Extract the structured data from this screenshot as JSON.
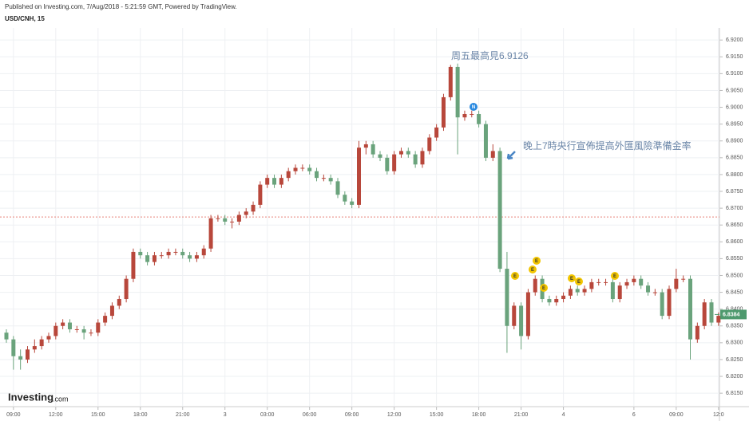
{
  "header": {
    "published": "Published on Investing.com, 7/Aug/2018 - 5:21:59 GMT, Powered by TradingView.",
    "symbol": "USD/CNH, 15",
    "logo": "Investing",
    "logo_suffix": ".com"
  },
  "chart_data": {
    "type": "candlestick",
    "categories": [
      null,
      "09:00",
      null,
      null,
      null,
      null,
      null,
      "12:00",
      null,
      null,
      null,
      null,
      null,
      "15:00",
      null,
      null,
      null,
      null,
      null,
      "18:00",
      null,
      null,
      null,
      null,
      null,
      "21:00",
      null,
      null,
      null,
      null,
      null,
      "3",
      null,
      null,
      null,
      null,
      null,
      "03:00",
      null,
      null,
      null,
      null,
      null,
      "06:00",
      null,
      null,
      null,
      null,
      null,
      "09:00",
      null,
      null,
      null,
      null,
      null,
      "12:00",
      null,
      null,
      null,
      null,
      null,
      "15:00",
      null,
      null,
      null,
      null,
      null,
      "18:00",
      null,
      null,
      null,
      null,
      null,
      "21:00",
      null,
      null,
      null,
      null,
      null,
      "4",
      null,
      null,
      null,
      null,
      null,
      null,
      null,
      null,
      null,
      "6",
      null,
      null,
      null,
      null,
      null,
      "09:00",
      null,
      null,
      null,
      null,
      null,
      "12:0"
    ],
    "open": [
      6.833,
      6.831,
      6.826,
      6.825,
      6.828,
      6.829,
      6.831,
      6.832,
      6.835,
      6.836,
      6.834,
      6.834,
      6.833,
      6.833,
      6.836,
      6.838,
      6.841,
      6.843,
      6.849,
      6.857,
      6.856,
      6.854,
      6.856,
      6.856,
      6.857,
      6.857,
      6.856,
      6.855,
      6.856,
      6.858,
      6.867,
      6.867,
      6.866,
      6.866,
      6.868,
      6.869,
      6.871,
      6.877,
      6.879,
      6.877,
      6.879,
      6.881,
      6.882,
      6.882,
      6.881,
      6.879,
      6.879,
      6.878,
      6.874,
      6.872,
      6.871,
      6.888,
      6.889,
      6.886,
      6.885,
      6.881,
      6.886,
      6.887,
      6.886,
      6.883,
      6.887,
      6.891,
      6.894,
      6.903,
      6.912,
      6.897,
      6.898,
      6.898,
      6.895,
      6.885,
      6.887,
      6.852,
      6.835,
      6.841,
      6.832,
      6.845,
      6.849,
      6.843,
      6.842,
      6.843,
      6.844,
      6.846,
      6.845,
      6.846,
      6.848,
      6.848,
      6.848,
      6.843,
      6.847,
      6.848,
      6.849,
      6.847,
      6.845,
      6.845,
      6.838,
      6.846,
      6.849,
      6.849,
      6.831,
      6.835,
      6.842,
      6.836
    ],
    "high": [
      6.834,
      6.832,
      6.828,
      6.829,
      6.831,
      6.832,
      6.833,
      6.836,
      6.837,
      6.837,
      6.835,
      6.835,
      6.834,
      6.837,
      6.839,
      6.842,
      6.844,
      6.85,
      6.858,
      6.858,
      6.857,
      6.857,
      6.857,
      6.858,
      6.858,
      6.858,
      6.857,
      6.857,
      6.859,
      6.868,
      6.868,
      6.868,
      6.867,
      6.869,
      6.87,
      6.872,
      6.878,
      6.88,
      6.88,
      6.88,
      6.882,
      6.883,
      6.883,
      6.883,
      6.882,
      6.88,
      6.88,
      6.879,
      6.875,
      6.873,
      6.89,
      6.89,
      6.89,
      6.887,
      6.886,
      6.887,
      6.888,
      6.888,
      6.887,
      6.888,
      6.892,
      6.895,
      6.904,
      6.9126,
      6.913,
      6.899,
      6.899,
      6.899,
      6.896,
      6.889,
      6.888,
      6.857,
      6.842,
      6.842,
      6.846,
      6.85,
      6.85,
      6.844,
      6.844,
      6.845,
      6.847,
      6.847,
      6.847,
      6.849,
      6.849,
      6.849,
      6.849,
      6.848,
      6.849,
      6.85,
      6.85,
      6.848,
      6.846,
      6.846,
      6.847,
      6.852,
      6.85,
      6.85,
      6.836,
      6.843,
      6.843,
      6.839
    ],
    "low": [
      6.83,
      6.822,
      6.822,
      6.824,
      6.827,
      6.828,
      6.83,
      6.831,
      6.834,
      6.833,
      6.833,
      6.831,
      6.832,
      6.832,
      6.835,
      6.837,
      6.84,
      6.842,
      6.848,
      6.855,
      6.853,
      6.853,
      6.855,
      6.855,
      6.856,
      6.855,
      6.854,
      6.854,
      6.855,
      6.857,
      6.866,
      6.865,
      6.864,
      6.865,
      6.867,
      6.868,
      6.87,
      6.876,
      6.876,
      6.876,
      6.878,
      6.88,
      6.881,
      6.88,
      6.878,
      6.878,
      6.877,
      6.873,
      6.871,
      6.87,
      6.87,
      6.886,
      6.885,
      6.884,
      6.88,
      6.88,
      6.885,
      6.885,
      6.882,
      6.882,
      6.886,
      6.89,
      6.893,
      6.902,
      6.886,
      6.896,
      6.897,
      6.894,
      6.884,
      6.884,
      6.851,
      6.827,
      6.834,
      6.828,
      6.831,
      6.844,
      6.842,
      6.841,
      6.841,
      6.842,
      6.843,
      6.844,
      6.844,
      6.845,
      6.847,
      6.847,
      6.842,
      6.842,
      6.846,
      6.847,
      6.846,
      6.844,
      6.844,
      6.837,
      6.837,
      6.845,
      6.848,
      6.825,
      6.83,
      6.834,
      6.835,
      6.835
    ],
    "close": [
      6.831,
      6.826,
      6.825,
      6.828,
      6.829,
      6.831,
      6.832,
      6.835,
      6.836,
      6.834,
      6.834,
      6.833,
      6.833,
      6.836,
      6.838,
      6.841,
      6.843,
      6.849,
      6.857,
      6.856,
      6.854,
      6.856,
      6.856,
      6.857,
      6.857,
      6.856,
      6.855,
      6.856,
      6.858,
      6.867,
      6.867,
      6.866,
      6.866,
      6.868,
      6.869,
      6.871,
      6.877,
      6.879,
      6.877,
      6.879,
      6.881,
      6.882,
      6.882,
      6.881,
      6.879,
      6.879,
      6.878,
      6.874,
      6.872,
      6.871,
      6.888,
      6.889,
      6.886,
      6.885,
      6.881,
      6.886,
      6.887,
      6.886,
      6.883,
      6.887,
      6.891,
      6.894,
      6.903,
      6.912,
      6.897,
      6.898,
      6.898,
      6.895,
      6.885,
      6.887,
      6.852,
      6.835,
      6.841,
      6.832,
      6.845,
      6.849,
      6.843,
      6.842,
      6.843,
      6.844,
      6.846,
      6.845,
      6.846,
      6.848,
      6.848,
      6.848,
      6.843,
      6.847,
      6.848,
      6.849,
      6.847,
      6.845,
      6.845,
      6.838,
      6.846,
      6.849,
      6.849,
      6.831,
      6.835,
      6.842,
      6.836,
      6.838
    ],
    "up_color": "#b8473b",
    "down_color": "#6aa37c",
    "ylim": [
      6.811,
      6.9236
    ],
    "yticks": [
      {
        "value": 6.815,
        "label": "6.8150"
      },
      {
        "value": 6.82,
        "label": "6.8200"
      },
      {
        "value": 6.825,
        "label": "6.8250"
      },
      {
        "value": 6.83,
        "label": "6.8300"
      },
      {
        "value": 6.835,
        "label": "6.8350"
      },
      {
        "value": 6.84,
        "label": "6.8400"
      },
      {
        "value": 6.845,
        "label": "6.8450"
      },
      {
        "value": 6.85,
        "label": "6.8500"
      },
      {
        "value": 6.855,
        "label": "6.8550"
      },
      {
        "value": 6.86,
        "label": "6.8600"
      },
      {
        "value": 6.865,
        "label": "6.8650"
      },
      {
        "value": 6.87,
        "label": "6.8700"
      },
      {
        "value": 6.875,
        "label": "6.8750"
      },
      {
        "value": 6.88,
        "label": "6.8800"
      },
      {
        "value": 6.885,
        "label": "6.8850"
      },
      {
        "value": 6.89,
        "label": "6.8900"
      },
      {
        "value": 6.895,
        "label": "6.8950"
      },
      {
        "value": 6.9,
        "label": "6.9000"
      },
      {
        "value": 6.905,
        "label": "6.9050"
      },
      {
        "value": 6.91,
        "label": "6.9100"
      },
      {
        "value": 6.915,
        "label": "6.9150"
      },
      {
        "value": 6.92,
        "label": "6.9200"
      }
    ],
    "grid": true,
    "reference_line": 6.8674,
    "last_price": {
      "value": 6.8384,
      "label": "6.8384"
    },
    "annotations": [
      "周五最高見6.9126",
      "晚上7時央行宣佈提高外匯風險準備金率"
    ],
    "events": [
      "N",
      "E",
      "E",
      "E",
      "E",
      "E",
      "E",
      "E"
    ]
  }
}
